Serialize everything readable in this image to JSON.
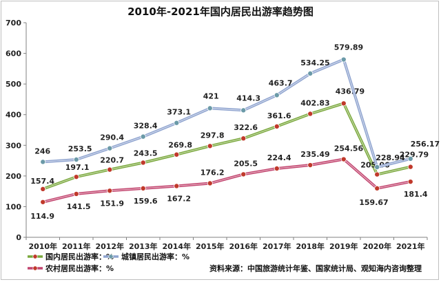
{
  "chart_data": {
    "type": "line",
    "title": "2010年-2021年国内居民出游率趋势图",
    "categories": [
      "2010年",
      "2011年",
      "2012年",
      "2013年",
      "2014年",
      "2015年",
      "2016年",
      "2017年",
      "2018年",
      "2019年",
      "2020年",
      "2021年"
    ],
    "ylim": [
      0,
      700
    ],
    "yticks": [
      0,
      100,
      200,
      300,
      400,
      500,
      600,
      700
    ],
    "grid": false,
    "legend_position": "bottom-left",
    "series": [
      {
        "name": "国内居民出游率：%",
        "color": "#7aa83c",
        "marker_color": "#c0392b",
        "values": [
          157.4,
          197.1,
          220.7,
          243.5,
          269.8,
          297.8,
          322.6,
          361.6,
          402.83,
          436.79,
          205.06,
          229.79
        ],
        "labels": [
          "157.4",
          "197.1",
          "220.7",
          "243.5",
          "269.8",
          "297.8",
          "322.6",
          "361.6",
          "402.83",
          "436.79",
          "205.06",
          "229.79"
        ]
      },
      {
        "name": "城镇居民出游率：%",
        "color": "#8ea3cf",
        "marker_color": "#6b9aa8",
        "values": [
          246,
          253.5,
          290.4,
          328.4,
          373.1,
          421,
          414.3,
          463.7,
          534.25,
          579.89,
          228.94,
          256.17
        ],
        "labels": [
          "246",
          "253.5",
          "290.4",
          "328.4",
          "373.1",
          "421",
          "414.3",
          "463.7",
          "534.25",
          "579.89",
          "228.94",
          "256.17"
        ]
      },
      {
        "name": "农村居民出游率：%",
        "color": "#c2446e",
        "marker_color": "#c0392b",
        "values": [
          114.9,
          141.5,
          151.9,
          159.6,
          167.2,
          176.2,
          205.5,
          224.4,
          235.49,
          254.56,
          159.67,
          181.4
        ],
        "labels": [
          "114.9",
          "141.5",
          "151.9",
          "159.6",
          "167.2",
          "176.2",
          "205.5",
          "224.4",
          "235.49",
          "254.56",
          "159.67",
          "181.4"
        ]
      }
    ],
    "source": "资料来源：中国旅游统计年鉴、国家统计局、观知海内咨询整理"
  }
}
